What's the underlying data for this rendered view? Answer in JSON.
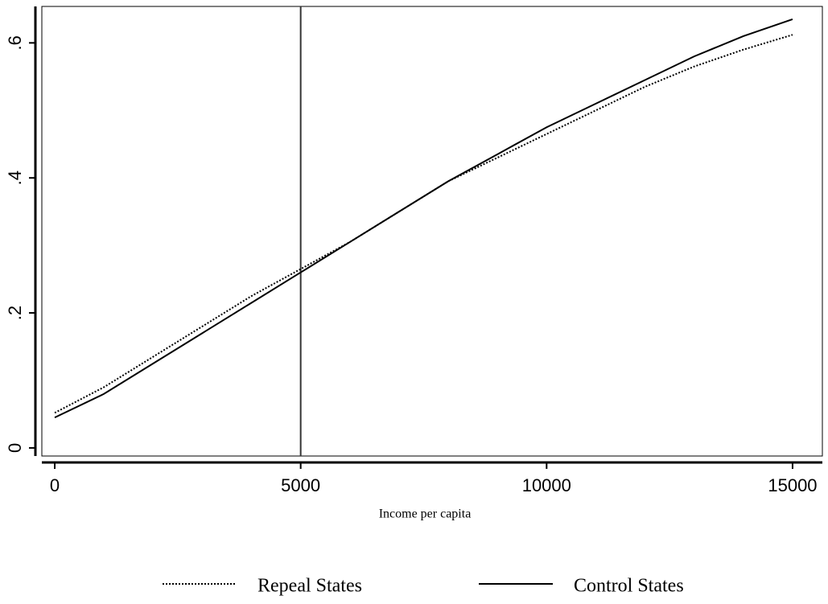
{
  "chart_data": {
    "type": "line",
    "x_label": "Income per capita",
    "x": [
      0,
      1000,
      2000,
      3000,
      4000,
      5000,
      6000,
      7000,
      8000,
      9000,
      10000,
      11000,
      12000,
      13000,
      14000,
      15000
    ],
    "series": [
      {
        "name": "Repeal States",
        "color": "#000000",
        "dash": "dotted",
        "values": [
          0.052,
          0.09,
          0.135,
          0.18,
          0.225,
          0.265,
          0.305,
          0.35,
          0.395,
          0.43,
          0.465,
          0.5,
          0.535,
          0.565,
          0.59,
          0.612
        ]
      },
      {
        "name": "Control States",
        "color": "#000000",
        "dash": "solid",
        "values": [
          0.045,
          0.08,
          0.125,
          0.17,
          0.215,
          0.26,
          0.305,
          0.35,
          0.395,
          0.435,
          0.475,
          0.51,
          0.545,
          0.58,
          0.61,
          0.635
        ]
      }
    ],
    "xlim": [
      -262,
      15606
    ],
    "xticks": [
      0,
      5000,
      10000,
      15000
    ],
    "ylim": [
      -0.012,
      0.654
    ],
    "yticks": [
      0,
      {
        "value": 0.2,
        "label": ".2"
      },
      {
        "value": 0.4,
        "label": ".4"
      },
      {
        "value": 0.6,
        "label": ".6"
      }
    ],
    "vline": 5000,
    "legend": "bottom"
  }
}
